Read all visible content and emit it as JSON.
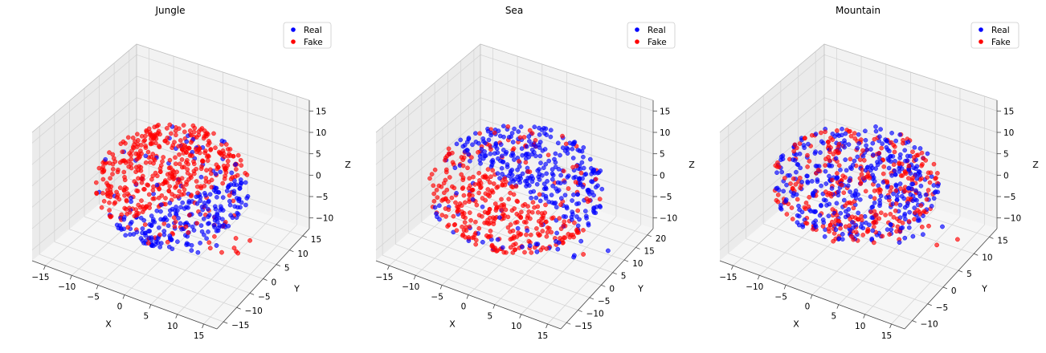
{
  "colors": {
    "real": "#0000ff",
    "fake": "#ff0000",
    "pane": "#f2f2f2",
    "grid": "#d6d6d6"
  },
  "chart_data": [
    {
      "type": "scatter3d",
      "title": "Jungle",
      "xlabel": "X",
      "ylabel": "Y",
      "zlabel": "Z",
      "xticks": [
        "−15",
        "−10",
        "−5",
        "0",
        "5",
        "10",
        "15"
      ],
      "yticks": [
        "−15",
        "−10",
        "−5",
        "0",
        "5",
        "10",
        "15"
      ],
      "zticks": [
        "−10",
        "−5",
        "0",
        "5",
        "10",
        "15"
      ],
      "legend": {
        "placement": "top-right",
        "entries": [
          "Real",
          "Fake"
        ]
      },
      "series": [
        {
          "name": "Real",
          "color": "#0000ff",
          "region": "lower-front cluster"
        },
        {
          "name": "Fake",
          "color": "#ff0000",
          "region": "upper-left cluster"
        }
      ]
    },
    {
      "type": "scatter3d",
      "title": "Sea",
      "xlabel": "X",
      "ylabel": "Y",
      "zlabel": "Z",
      "xticks": [
        "−15",
        "−10",
        "−5",
        "0",
        "5",
        "10",
        "15"
      ],
      "yticks": [
        "−15",
        "−10",
        "−5",
        "0",
        "5",
        "10",
        "15",
        "20"
      ],
      "zticks": [
        "−10",
        "−5",
        "0",
        "5",
        "10",
        "15"
      ],
      "legend": {
        "placement": "top-right",
        "entries": [
          "Real",
          "Fake"
        ]
      },
      "series": [
        {
          "name": "Real",
          "color": "#0000ff",
          "region": "upper-left cluster"
        },
        {
          "name": "Fake",
          "color": "#ff0000",
          "region": "lower-right cluster"
        }
      ]
    },
    {
      "type": "scatter3d",
      "title": "Mountain",
      "xlabel": "X",
      "ylabel": "Y",
      "zlabel": "Z",
      "xticks": [
        "−15",
        "−10",
        "−5",
        "0",
        "5",
        "10",
        "15"
      ],
      "yticks": [
        "−10",
        "−5",
        "0",
        "5",
        "10",
        "15"
      ],
      "zticks": [
        "−10",
        "−5",
        "0",
        "5",
        "10",
        "15"
      ],
      "legend": {
        "placement": "top-right",
        "entries": [
          "Real",
          "Fake"
        ]
      },
      "series": [
        {
          "name": "Real",
          "color": "#0000ff",
          "region": "mixed"
        },
        {
          "name": "Fake",
          "color": "#ff0000",
          "region": "mixed"
        }
      ]
    }
  ]
}
